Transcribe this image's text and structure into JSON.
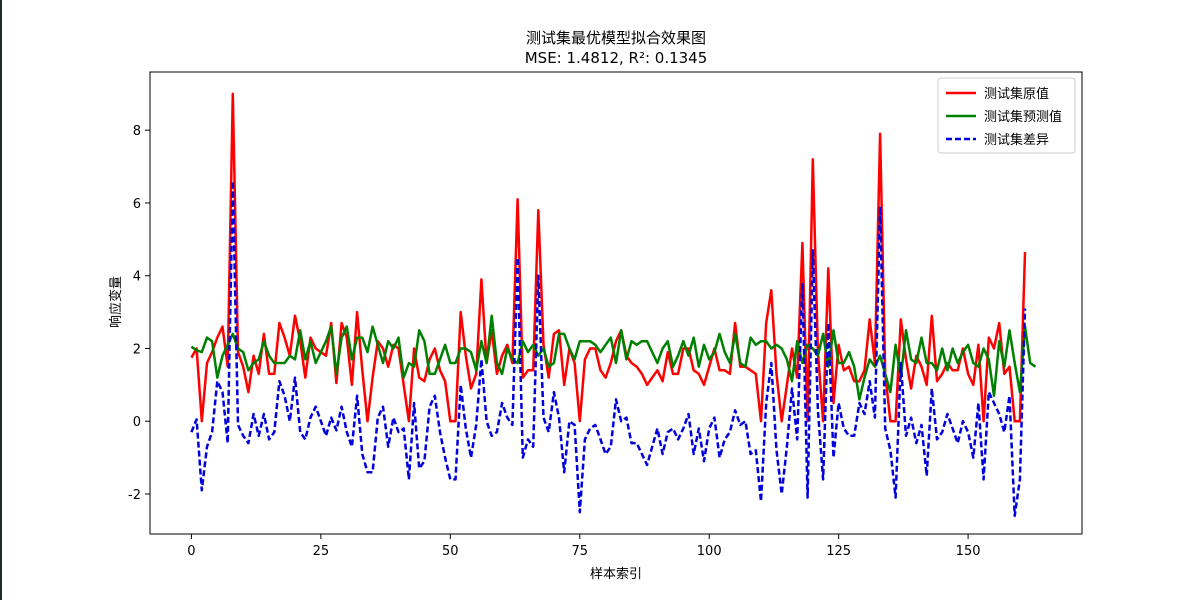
{
  "chart_data": {
    "type": "line",
    "title": "测试集最优模型拟合效果图",
    "subtitle": "MSE: 1.4812, R²: 0.1345",
    "xlabel": "样本索引",
    "ylabel": "响应变量",
    "xlim": [
      -8,
      172
    ],
    "ylim": [
      -3.1,
      9.6
    ],
    "xticks": [
      0,
      25,
      50,
      75,
      100,
      125,
      150
    ],
    "yticks": [
      -2,
      0,
      2,
      4,
      6,
      8
    ],
    "grid": false,
    "legend_position": "top-right",
    "series": [
      {
        "name": "测试集原值",
        "color": "#ff0000",
        "style": "solid",
        "values": [
          1.75,
          2.0,
          0.0,
          1.6,
          1.9,
          2.3,
          2.6,
          1.5,
          9.0,
          1.9,
          1.5,
          0.8,
          1.8,
          1.3,
          2.4,
          1.3,
          1.3,
          2.7,
          2.3,
          1.8,
          2.9,
          2.2,
          1.2,
          2.3,
          2.0,
          1.9,
          1.8,
          2.7,
          1.05,
          2.7,
          2.3,
          1.0,
          3.0,
          1.4,
          0.0,
          1.2,
          2.2,
          2.0,
          1.5,
          2.1,
          2.0,
          1.0,
          0.0,
          2.0,
          1.2,
          1.1,
          1.7,
          2.0,
          1.4,
          1.1,
          0.0,
          0.0,
          3.0,
          1.8,
          0.9,
          1.3,
          3.9,
          1.6,
          2.5,
          1.3,
          1.8,
          2.1,
          1.6,
          6.1,
          1.2,
          1.4,
          1.4,
          5.8,
          2.1,
          1.2,
          2.4,
          2.5,
          1.0,
          2.0,
          1.6,
          0.0,
          1.7,
          2.0,
          2.0,
          1.4,
          1.2,
          1.6,
          2.2,
          2.5,
          1.8,
          1.6,
          1.5,
          1.3,
          1.0,
          1.2,
          1.4,
          1.1,
          1.9,
          1.3,
          1.3,
          2.0,
          2.0,
          1.4,
          1.3,
          1.0,
          1.5,
          2.0,
          1.4,
          1.4,
          1.3,
          2.7,
          1.5,
          1.5,
          1.4,
          1.3,
          0.0,
          2.7,
          3.6,
          1.3,
          0.0,
          1.0,
          2.0,
          1.2,
          4.9,
          0.0,
          7.2,
          1.9,
          0.0,
          4.2,
          0.5,
          2.1,
          1.4,
          1.5,
          1.1,
          1.1,
          1.4,
          2.8,
          1.6,
          7.9,
          1.3,
          0.0,
          0.0,
          2.8,
          1.7,
          0.9,
          1.8,
          1.5,
          1.0,
          2.9,
          1.1,
          1.3,
          1.6,
          1.4,
          1.4,
          2.0,
          1.3,
          1.0,
          2.1,
          0.0,
          2.3,
          2.0,
          2.7,
          1.3,
          1.5,
          0.0,
          0.0,
          4.65
        ]
      },
      {
        "name": "测试集预测值",
        "color": "#008000",
        "style": "solid",
        "values": [
          2.05,
          1.95,
          1.9,
          2.3,
          2.2,
          1.2,
          1.8,
          2.1,
          2.4,
          2.0,
          1.9,
          1.4,
          1.6,
          1.7,
          2.2,
          1.8,
          1.6,
          1.6,
          1.6,
          1.8,
          1.7,
          2.5,
          1.7,
          2.2,
          1.6,
          1.9,
          2.2,
          2.6,
          1.3,
          2.3,
          2.6,
          1.7,
          2.3,
          2.3,
          1.9,
          2.6,
          2.1,
          1.6,
          2.2,
          2.0,
          2.3,
          1.2,
          1.6,
          1.5,
          2.5,
          2.2,
          1.3,
          1.3,
          1.7,
          2.1,
          1.6,
          1.6,
          2.0,
          2.0,
          1.9,
          1.4,
          2.2,
          1.6,
          2.9,
          1.6,
          1.3,
          2.0,
          1.7,
          1.6,
          2.2,
          1.9,
          2.1,
          1.8,
          2.0,
          1.5,
          1.6,
          2.4,
          2.4,
          2.0,
          1.7,
          2.2,
          2.2,
          2.2,
          2.1,
          1.9,
          2.1,
          2.3,
          1.6,
          2.5,
          1.7,
          2.2,
          2.1,
          2.2,
          2.2,
          1.9,
          1.6,
          2.0,
          2.2,
          1.5,
          1.8,
          2.2,
          1.8,
          2.3,
          1.5,
          2.1,
          1.7,
          1.9,
          2.4,
          1.9,
          1.6,
          2.4,
          1.6,
          1.5,
          2.3,
          2.1,
          2.2,
          2.2,
          2.0,
          2.1,
          2.0,
          1.7,
          1.1,
          2.2,
          1.6,
          2.1,
          2.0,
          1.8,
          2.4,
          1.5,
          2.5,
          1.6,
          1.6,
          1.9,
          1.5,
          0.6,
          1.2,
          1.7,
          1.5,
          1.8,
          1.3,
          0.8,
          2.1,
          1.2,
          2.5,
          1.7,
          1.6,
          2.3,
          1.6,
          1.6,
          1.4,
          2.0,
          1.4,
          2.0,
          1.6,
          1.9,
          2.1,
          1.6,
          1.5,
          2.0,
          1.7,
          0.7,
          2.2,
          1.5,
          2.5,
          1.6,
          0.8,
          2.6,
          1.6,
          1.5
        ]
      },
      {
        "name": "测试集差异",
        "color": "#0000dd",
        "style": "dashed",
        "values": [
          -0.3,
          0.05,
          -1.9,
          -0.7,
          -0.3,
          1.1,
          0.8,
          -0.6,
          6.6,
          -0.1,
          -0.4,
          -0.6,
          0.2,
          -0.4,
          0.2,
          -0.5,
          -0.3,
          1.1,
          0.7,
          0.0,
          1.2,
          -0.3,
          -0.5,
          0.1,
          0.4,
          0.0,
          -0.4,
          0.1,
          -0.25,
          0.4,
          -0.3,
          -0.7,
          0.7,
          -0.9,
          -1.4,
          -1.4,
          0.1,
          0.4,
          -0.7,
          0.1,
          -0.3,
          -0.2,
          -1.6,
          0.5,
          -1.3,
          -1.1,
          0.4,
          0.7,
          -0.3,
          -1.0,
          -1.6,
          -1.6,
          1.0,
          -0.2,
          -1.0,
          -0.1,
          1.7,
          0.0,
          -0.4,
          -0.3,
          0.5,
          0.1,
          -0.1,
          4.5,
          -1.0,
          -0.5,
          -0.7,
          4.0,
          0.1,
          -0.3,
          0.8,
          0.1,
          -1.4,
          0.0,
          -0.1,
          -2.5,
          -0.5,
          -0.2,
          -0.1,
          -0.5,
          -0.9,
          -0.7,
          0.6,
          0.0,
          0.1,
          -0.6,
          -0.6,
          -0.9,
          -1.2,
          -0.7,
          -0.2,
          -0.9,
          -0.3,
          -0.2,
          -0.5,
          -0.2,
          0.2,
          -0.9,
          -0.2,
          -1.1,
          -0.2,
          0.1,
          -1.0,
          -0.5,
          -0.3,
          0.3,
          -0.1,
          0.0,
          -0.9,
          -0.8,
          -2.2,
          0.5,
          1.6,
          -0.8,
          -2.0,
          -0.7,
          0.9,
          -0.5,
          3.8,
          -2.1,
          4.7,
          0.3,
          -1.6,
          2.7,
          -1.0,
          0.5,
          -0.2,
          -0.4,
          -0.4,
          0.5,
          0.2,
          1.1,
          0.1,
          5.9,
          -0.2,
          -0.8,
          -2.1,
          1.6,
          -0.4,
          0.1,
          -0.6,
          -0.1,
          -1.5,
          0.9,
          -0.5,
          -0.3,
          0.2,
          -0.2,
          -0.6,
          0.0,
          -0.3,
          -1.0,
          0.5,
          -1.6,
          0.8,
          0.5,
          0.2,
          -0.3,
          0.7,
          -2.6,
          -1.6,
          3.1
        ]
      }
    ]
  }
}
